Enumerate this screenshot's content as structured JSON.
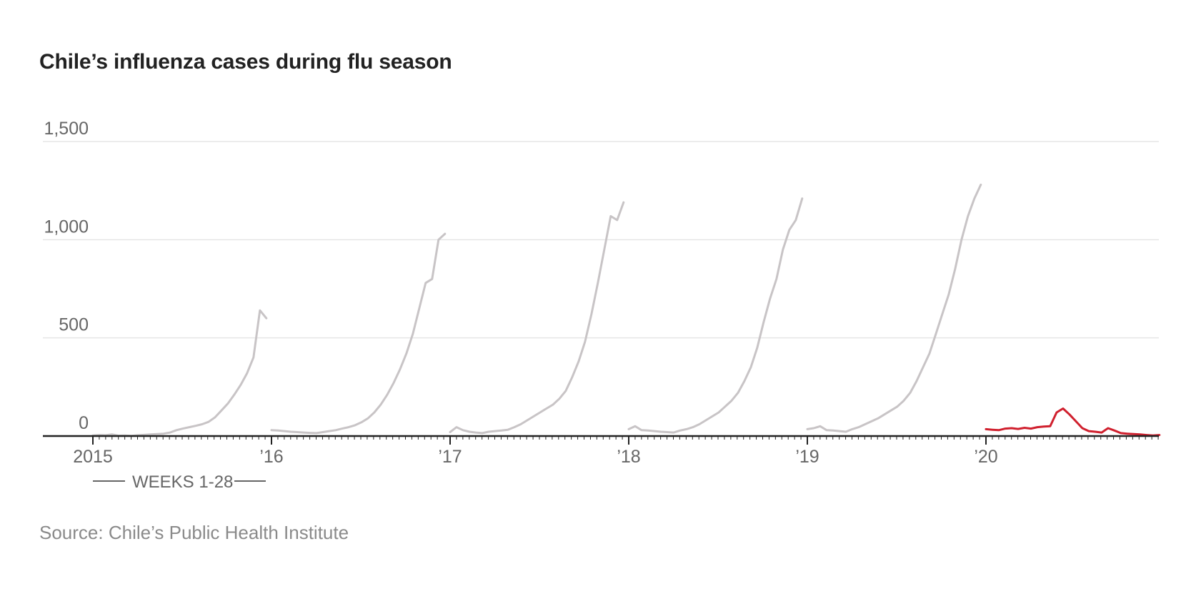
{
  "chart_data": {
    "type": "line",
    "title": "Chile’s influenza cases during flu season",
    "source": "Source: Chile’s Public Health Institute",
    "annotation": "WEEKS 1-28",
    "ylim": [
      0,
      1500
    ],
    "yticks": [
      0,
      500,
      1000,
      1500
    ],
    "ytick_labels": [
      "0",
      "500",
      "1,000",
      "1,500"
    ],
    "xlim": [
      0,
      6
    ],
    "xticks": [
      0,
      1,
      2,
      3,
      4,
      5
    ],
    "xtick_labels": [
      "2015",
      "’16",
      "’17",
      "’18",
      "’19",
      "’20"
    ],
    "grid": true,
    "series": [
      {
        "color": "#c8c4c6",
        "seasons": [
          {
            "start": 0,
            "values": [
              3,
              5,
              4,
              8,
              2,
              3,
              1,
              4,
              6,
              8,
              10,
              12,
              18,
              30,
              38,
              45,
              52,
              60,
              72,
              95,
              130,
              165,
              210,
              260,
              320,
              400,
              640,
              600
            ]
          },
          {
            "start": 1,
            "values": [
              30,
              28,
              25,
              22,
              20,
              18,
              16,
              15,
              20,
              25,
              30,
              38,
              45,
              55,
              70,
              90,
              120,
              160,
              210,
              270,
              340,
              420,
              520,
              650,
              780,
              800,
              1000,
              1030
            ]
          },
          {
            "start": 2,
            "values": [
              20,
              45,
              30,
              22,
              18,
              15,
              22,
              25,
              28,
              32,
              45,
              60,
              80,
              100,
              120,
              140,
              160,
              190,
              230,
              300,
              380,
              480,
              620,
              780,
              950,
              1120,
              1100,
              1190
            ]
          },
          {
            "start": 3,
            "values": [
              35,
              50,
              30,
              28,
              25,
              22,
              20,
              18,
              28,
              35,
              45,
              60,
              80,
              100,
              120,
              150,
              180,
              220,
              280,
              350,
              450,
              580,
              700,
              800,
              950,
              1050,
              1100,
              1210
            ]
          },
          {
            "start": 4,
            "values": [
              35,
              40,
              50,
              30,
              28,
              25,
              22,
              35,
              45,
              60,
              75,
              90,
              110,
              130,
              150,
              180,
              220,
              280,
              350,
              420,
              520,
              620,
              720,
              850,
              1000,
              1120,
              1210,
              1280
            ]
          }
        ]
      },
      {
        "color": "#d0202e",
        "seasons": [
          {
            "start": 5,
            "values": [
              35,
              32,
              30,
              38,
              40,
              36,
              42,
              38,
              45,
              48,
              50,
              120,
              140,
              110,
              75,
              40,
              25,
              22,
              18,
              40,
              28,
              15,
              12,
              10,
              8,
              5,
              3,
              5
            ]
          }
        ]
      }
    ]
  }
}
